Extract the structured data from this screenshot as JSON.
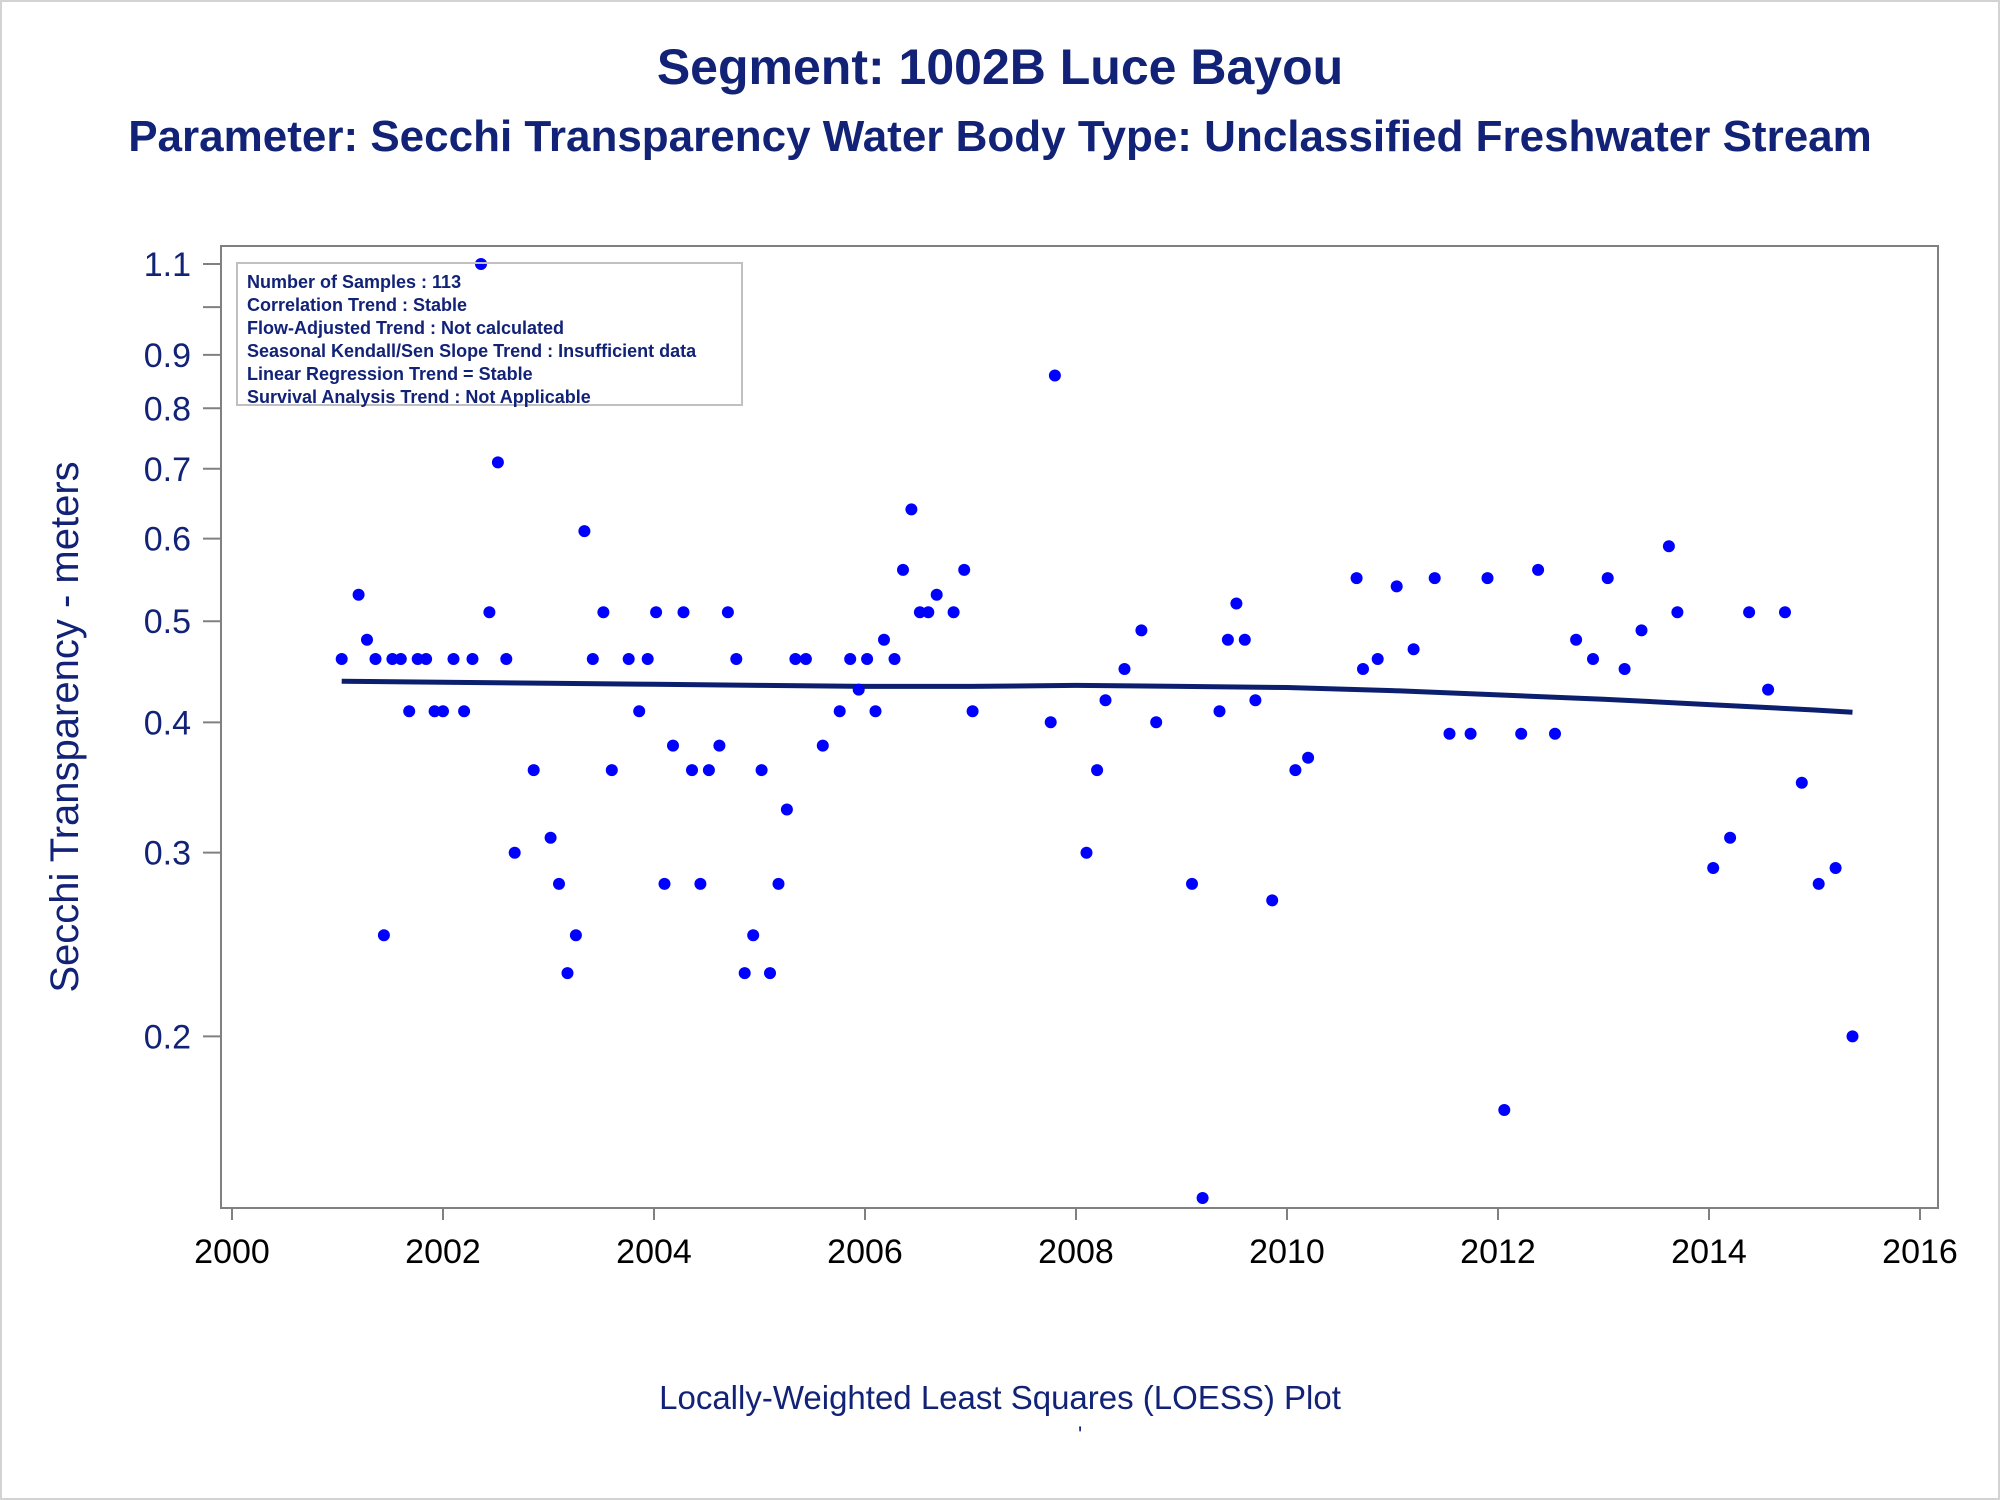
{
  "title": "Segment: 1002B  Luce Bayou",
  "subtitle": "Parameter: Secchi Transparency   Water Body Type: Unclassified Freshwater Stream",
  "footnote": "Locally-Weighted Least Squares (LOESS) Plot",
  "footnote_mark": "'",
  "colors": {
    "text": "#112277",
    "points": "#0000ff",
    "loess": "#0b1f6e",
    "axis": "#808080"
  },
  "chart_data": {
    "type": "scatter",
    "xlabel": "",
    "ylabel": "Secchi Transparency - meters",
    "xlim": [
      2000,
      2016
    ],
    "ylim": [
      0.14,
      1.1
    ],
    "yscale": "log",
    "xticks": [
      "2000",
      "2002",
      "2004",
      "2006",
      "2008",
      "2010",
      "2012",
      "2014",
      "2016"
    ],
    "yticks": [
      "0.2",
      "0.3",
      "0.4",
      "0.5",
      "0.6",
      "0.7",
      "0.8",
      "0.9",
      "1.1"
    ],
    "yminor_ticks": [
      1.0
    ],
    "legend_box": [
      "Number of Samples : 113",
      "Correlation Trend : Stable",
      "Flow-Adjusted Trend : Not calculated",
      "Seasonal Kendall/Sen Slope Trend : Insufficient data",
      "Linear Regression Trend = Stable",
      "Survival Analysis Trend : Not Applicable"
    ],
    "legend_box_placement": "top-left",
    "series": [
      {
        "type": "scatter",
        "x": [
          2001.04,
          2001.2,
          2001.28,
          2001.36,
          2001.44,
          2001.52,
          2001.6,
          2001.68,
          2001.76,
          2001.84,
          2001.92,
          2002.0,
          2002.1,
          2002.2,
          2002.28,
          2002.36,
          2002.44,
          2002.52,
          2002.6,
          2002.68,
          2002.86,
          2003.02,
          2003.1,
          2003.18,
          2003.26,
          2003.34,
          2003.42,
          2003.52,
          2003.6,
          2003.76,
          2003.86,
          2003.94,
          2004.02,
          2004.1,
          2004.18,
          2004.28,
          2004.36,
          2004.44,
          2004.52,
          2004.62,
          2004.7,
          2004.78,
          2004.86,
          2004.94,
          2005.02,
          2005.1,
          2005.18,
          2005.26,
          2005.34,
          2005.44,
          2005.6,
          2005.76,
          2005.86,
          2005.94,
          2006.02,
          2006.1,
          2006.18,
          2006.28,
          2006.36,
          2006.44,
          2006.52,
          2006.6,
          2006.68,
          2006.84,
          2006.94,
          2007.02,
          2007.76,
          2007.8,
          2008.1,
          2008.2,
          2008.28,
          2008.46,
          2008.62,
          2008.76,
          2009.1,
          2009.2,
          2009.36,
          2009.44,
          2009.52,
          2009.6,
          2009.7,
          2009.86,
          2010.08,
          2010.2,
          2010.66,
          2010.72,
          2010.86,
          2011.04,
          2011.2,
          2011.4,
          2011.54,
          2011.74,
          2011.9,
          2012.06,
          2012.22,
          2012.38,
          2012.54,
          2012.74,
          2012.9,
          2013.04,
          2013.2,
          2013.36,
          2013.62,
          2013.7,
          2014.04,
          2014.2,
          2014.38,
          2014.56,
          2014.72,
          2014.88,
          2015.04,
          2015.2,
          2015.36
        ],
        "y": [
          0.46,
          0.53,
          0.48,
          0.46,
          0.25,
          0.46,
          0.46,
          0.41,
          0.46,
          0.46,
          0.41,
          0.41,
          0.46,
          0.41,
          0.46,
          1.1,
          0.51,
          0.71,
          0.46,
          0.3,
          0.36,
          0.31,
          0.28,
          0.23,
          0.25,
          0.61,
          0.46,
          0.51,
          0.36,
          0.46,
          0.41,
          0.46,
          0.51,
          0.28,
          0.38,
          0.51,
          0.36,
          0.28,
          0.36,
          0.38,
          0.51,
          0.46,
          0.23,
          0.25,
          0.36,
          0.23,
          0.28,
          0.33,
          0.46,
          0.46,
          0.38,
          0.41,
          0.46,
          0.43,
          0.46,
          0.41,
          0.48,
          0.46,
          0.56,
          0.64,
          0.51,
          0.51,
          0.53,
          0.51,
          0.56,
          0.41,
          0.4,
          0.86,
          0.3,
          0.36,
          0.42,
          0.45,
          0.49,
          0.4,
          0.28,
          0.14,
          0.41,
          0.48,
          0.52,
          0.48,
          0.42,
          0.27,
          0.36,
          0.37,
          0.55,
          0.45,
          0.46,
          0.54,
          0.47,
          0.55,
          0.39,
          0.39,
          0.55,
          0.17,
          0.39,
          0.56,
          0.39,
          0.48,
          0.46,
          0.55,
          0.45,
          0.49,
          0.59,
          0.51,
          0.29,
          0.31,
          0.51,
          0.43,
          0.51,
          0.35,
          0.28,
          0.29,
          0.2
        ]
      },
      {
        "type": "line",
        "name": "",
        "x": [
          2001.04,
          2002.0,
          2003.0,
          2004.0,
          2005.0,
          2006.0,
          2007.0,
          2008.0,
          2009.0,
          2010.0,
          2011.0,
          2012.0,
          2013.0,
          2014.0,
          2015.0,
          2015.36
        ],
        "y": [
          0.438,
          0.437,
          0.436,
          0.435,
          0.434,
          0.433,
          0.433,
          0.434,
          0.433,
          0.432,
          0.429,
          0.425,
          0.421,
          0.416,
          0.411,
          0.409
        ]
      }
    ]
  }
}
